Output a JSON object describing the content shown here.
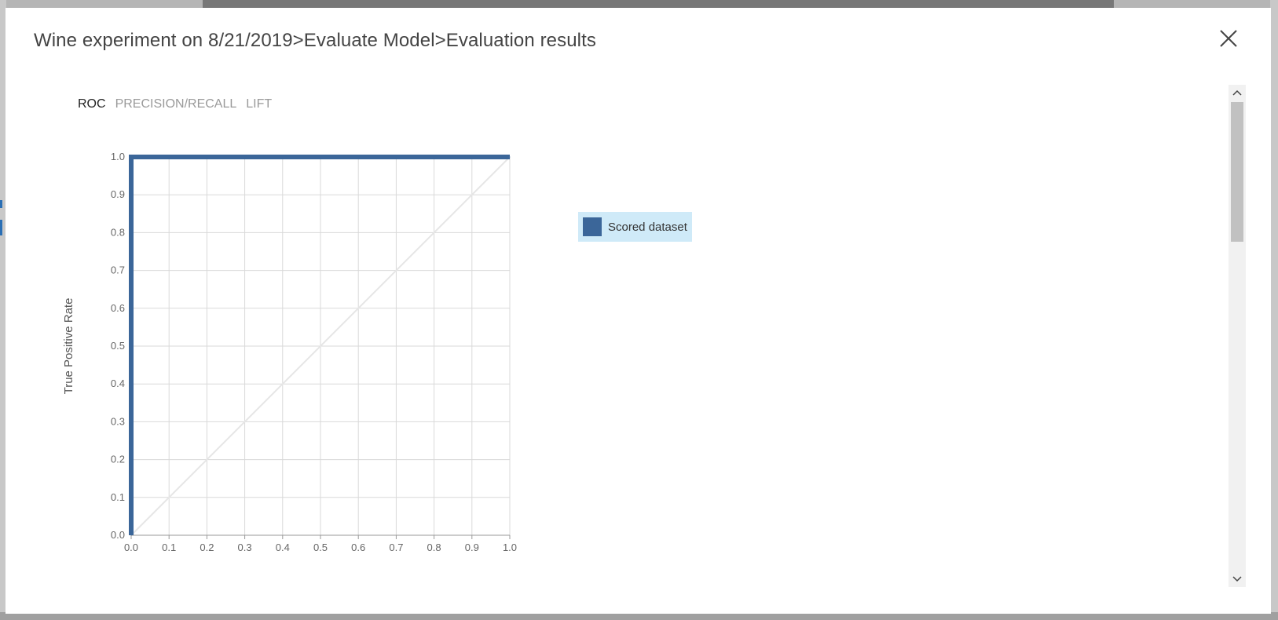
{
  "dialog": {
    "title": "Wine experiment on 8/21/2019>Evaluate Model>Evaluation results",
    "close_icon": "close-icon"
  },
  "tabs": [
    {
      "label": "ROC",
      "active": true
    },
    {
      "label": "PRECISION/RECALL",
      "active": false
    },
    {
      "label": "LIFT",
      "active": false
    }
  ],
  "legend": {
    "label": "Scored dataset",
    "swatch_color": "#3b6699",
    "highlight_color": "#cfeaf8"
  },
  "scrollbar": {
    "up_icon": "chevron-up-icon",
    "down_icon": "chevron-down-icon"
  },
  "chart_data": {
    "type": "line",
    "title": "",
    "xlabel": "",
    "ylabel": "True Positive Rate",
    "xlim": [
      0,
      1
    ],
    "ylim": [
      0,
      1
    ],
    "x_ticks": [
      "0.0",
      "0.1",
      "0.2",
      "0.3",
      "0.4",
      "0.5",
      "0.6",
      "0.7",
      "0.8",
      "0.9",
      "1.0"
    ],
    "y_ticks": [
      "0.0",
      "0.1",
      "0.2",
      "0.3",
      "0.4",
      "0.5",
      "0.6",
      "0.7",
      "0.8",
      "0.9",
      "1.0"
    ],
    "grid": true,
    "legend_position": "right",
    "series": [
      {
        "name": "Scored dataset",
        "color": "#3b6699",
        "x": [
          0.0,
          0.0,
          1.0
        ],
        "y": [
          0.0,
          1.0,
          1.0
        ]
      }
    ],
    "reference_line": {
      "color": "#e6e6e6",
      "x": [
        0.0,
        1.0
      ],
      "y": [
        0.0,
        1.0
      ]
    }
  }
}
